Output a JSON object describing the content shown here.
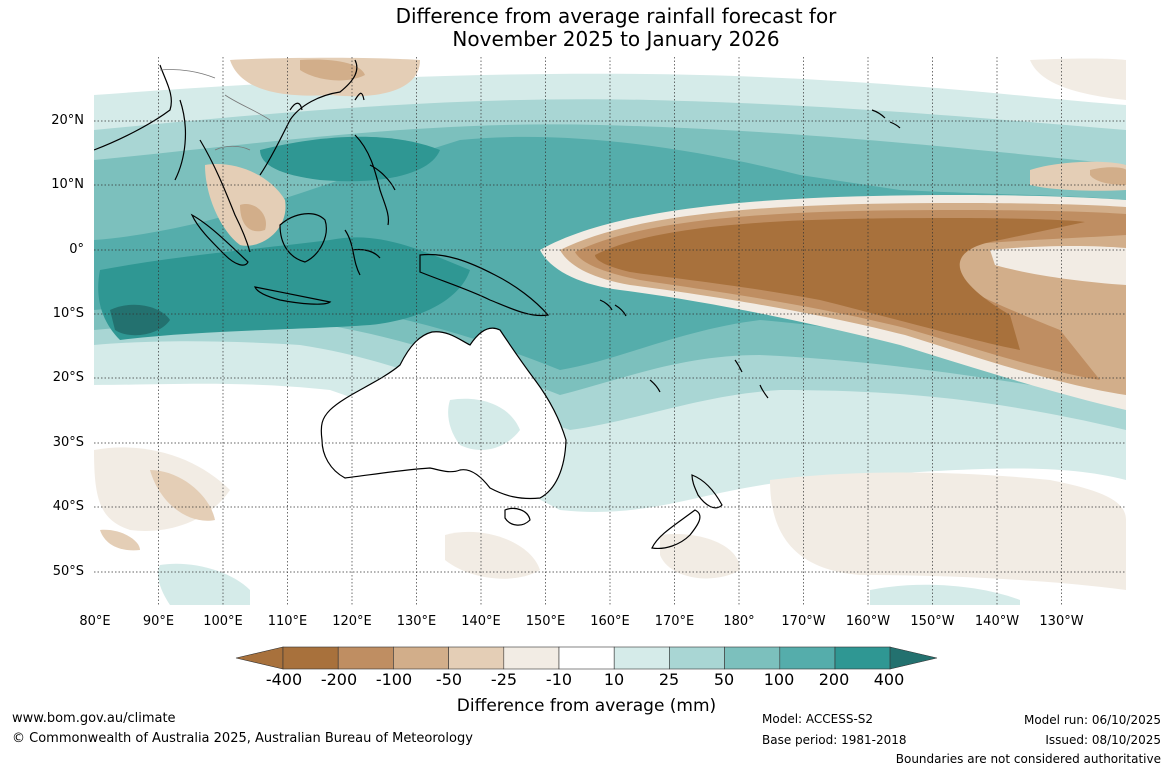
{
  "header": {
    "title_line1": "Difference from average rainfall forecast for",
    "title_line2": "November 2025 to January 2026"
  },
  "map": {
    "lat_labels": [
      "20°N",
      "10°N",
      "0°",
      "10°S",
      "20°S",
      "30°S",
      "40°S",
      "50°S"
    ],
    "lon_labels": [
      "80°E",
      "90°E",
      "100°E",
      "110°E",
      "120°E",
      "130°E",
      "140°E",
      "150°E",
      "160°E",
      "170°E",
      "180°",
      "170°W",
      "160°W",
      "150°W",
      "140°W",
      "130°W"
    ]
  },
  "legend": {
    "ticks": [
      "-400",
      "-200",
      "-100",
      "-50",
      "-25",
      "-10",
      "10",
      "25",
      "50",
      "100",
      "200",
      "400"
    ],
    "colors": [
      "#a8713c",
      "#bf8e62",
      "#d2ae8a",
      "#e4ceb6",
      "#f2ece4",
      "#ffffff",
      "#d5ebe9",
      "#a9d6d4",
      "#7cc0bd",
      "#55adab",
      "#2f9793",
      "#23716f"
    ],
    "title": "Difference from average (mm)"
  },
  "footer": {
    "website": "www.bom.gov.au/climate",
    "copyright": "© Commonwealth of Australia 2025, Australian Bureau of Meteorology",
    "model": "Model: ACCESS-S2",
    "base_period": "Base period: 1981-2018",
    "model_run": "Model run: 06/10/2025",
    "issued": "Issued: 08/10/2025",
    "disclaimer": "Boundaries are not considered authoritative"
  }
}
